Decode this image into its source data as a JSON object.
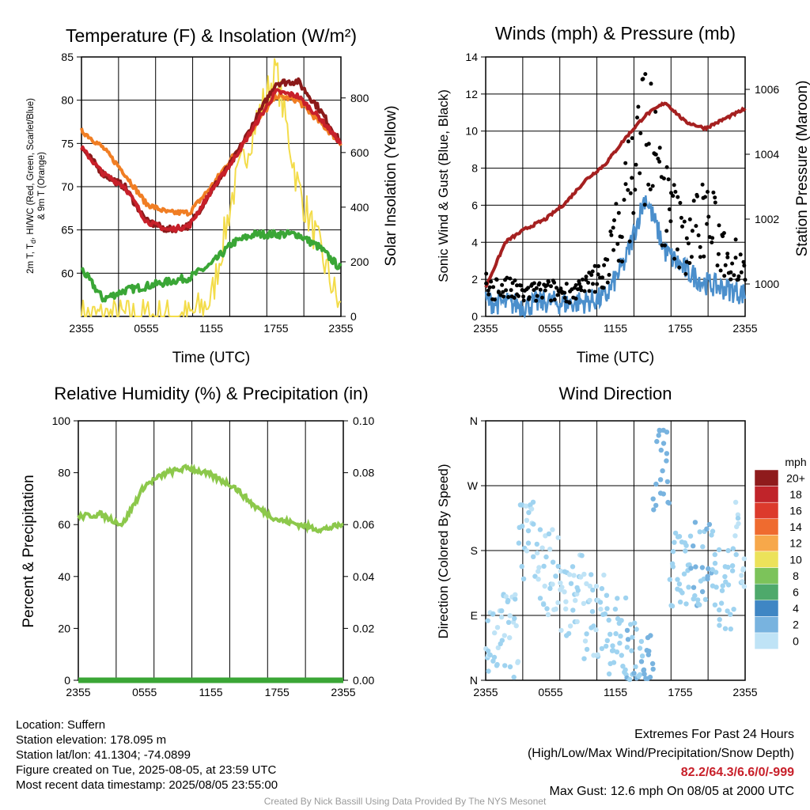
{
  "charts": {
    "temp": {
      "title": "Temperature (F) & Insolation (W/m²)",
      "ylabel_lines": [
        "2m T, T",
        "d",
        ", HI/WC (Red, Green, Scarlet/Blue)",
        "& 9m T (Orange)"
      ],
      "y2label": "Solar Insolation (Yellow)",
      "xlabel": "Time (UTC)"
    },
    "wind": {
      "title": "Winds (mph) & Pressure (mb)",
      "ylabel": "Sonic Wind & Gust (Blue, Black)",
      "y2label": "Station Pressure (Maroon)",
      "xlabel": "Time (UTC)"
    },
    "rh": {
      "title": "Relative Humidity (%) & Precipitation (in)",
      "ylabel": "Percent & Precipitation"
    },
    "dir": {
      "title": "Wind Direction",
      "ylabel": "Direction (Colored By Speed)",
      "colorbar_unit": "mph",
      "colorbar_labels": [
        "20+",
        "18",
        "16",
        "14",
        "12",
        "10",
        "8",
        "6",
        "4",
        "2",
        "0"
      ]
    }
  },
  "info": {
    "location": "Location: Suffern",
    "elevation": "Station elevation: 178.095 m",
    "latlon": "Station lat/lon: 41.1304; -74.0899",
    "created": "Figure created on Tue, 2025-08-05, at 23:59 UTC",
    "recent": "Most recent data timestamp: 2025/08/05 23:55:00",
    "extremes_title": "Extremes For Past 24 Hours",
    "extremes_sub": "(High/Low/Max Wind/Precipitation/Snow Depth)",
    "extremes_values": "82.2/64.3/6.6/0/-999",
    "max_gust": "Max Gust: 12.6 mph On 08/05 at 2000 UTC",
    "credit": "Created By Nick Bassill Using Data Provided By The NYS Mesonet"
  },
  "chart_data": [
    {
      "type": "line",
      "title": "Temperature (F) & Insolation (W/m²)",
      "xlabel": "Time (UTC)",
      "ylabel": "2m T, Td, HI/WC (Red, Green, Scarlet/Blue) & 9m T (Orange)",
      "y2label": "Solar Insolation (Yellow)",
      "x": [
        "2355",
        "0155",
        "0355",
        "0555",
        "0755",
        "0955",
        "1155",
        "1355",
        "1555",
        "1755",
        "1955",
        "2155",
        "2355"
      ],
      "x_ticks": [
        "2355",
        "0555",
        "1155",
        "1755",
        "2355"
      ],
      "ylim": [
        55,
        85
      ],
      "y2lim": [
        0,
        950
      ],
      "y_ticks": [
        60,
        65,
        70,
        75,
        80,
        85
      ],
      "y2_ticks": [
        0,
        200,
        400,
        600,
        800
      ],
      "series": [
        {
          "color": "#c8202a",
          "axis": "left",
          "values": [
            74.5,
            71.5,
            70.0,
            66.0,
            65.0,
            65.5,
            69.5,
            73.0,
            77.0,
            81.0,
            80.5,
            78.0,
            75.0
          ]
        },
        {
          "color": "#8b1a1a",
          "axis": "left",
          "values": [
            74.5,
            71.5,
            70.0,
            66.0,
            65.0,
            65.5,
            69.5,
            73.0,
            77.5,
            82.0,
            82.2,
            79.0,
            75.0
          ]
        },
        {
          "color": "#f07e24",
          "axis": "left",
          "values": [
            76.5,
            74.5,
            71.5,
            68.0,
            67.0,
            67.0,
            70.0,
            73.5,
            77.0,
            80.5,
            80.0,
            77.5,
            75.0
          ]
        },
        {
          "color": "#3aa636",
          "axis": "left",
          "values": [
            60.5,
            57.0,
            58.0,
            58.5,
            59.0,
            59.5,
            61.0,
            63.5,
            64.5,
            64.5,
            64.5,
            63.0,
            60.5
          ]
        },
        {
          "color": "#f3dc4a",
          "axis": "right",
          "values": [
            0,
            0,
            0,
            0,
            0,
            0,
            60,
            450,
            700,
            900,
            480,
            250,
            20
          ]
        }
      ]
    },
    {
      "type": "line",
      "title": "Winds (mph) & Pressure (mb)",
      "xlabel": "Time (UTC)",
      "ylabel": "Sonic Wind & Gust (Blue, Black)",
      "y2label": "Station Pressure (Maroon)",
      "x": [
        "2355",
        "0155",
        "0355",
        "0555",
        "0755",
        "0955",
        "1155",
        "1355",
        "1455",
        "1555",
        "1755",
        "1955",
        "2155",
        "2355"
      ],
      "x_ticks": [
        "2355",
        "0555",
        "1155",
        "1755",
        "2355"
      ],
      "ylim": [
        0,
        14
      ],
      "y2lim": [
        999.0,
        1007.0
      ],
      "y_ticks": [
        0,
        2,
        4,
        6,
        8,
        10,
        12,
        14
      ],
      "y2_ticks": [
        1000,
        1002,
        1004,
        1006
      ],
      "series": [
        {
          "color": "#4b8fcc",
          "axis": "left",
          "values": [
            0.8,
            0.7,
            0.6,
            0.8,
            0.7,
            0.8,
            1.0,
            3.0,
            6.5,
            3.5,
            2.5,
            1.8,
            1.5,
            1.2
          ]
        },
        {
          "color": "#000000",
          "axis": "left",
          "kind": "scatter",
          "values": [
            1.6,
            1.5,
            1.2,
            1.4,
            1.3,
            1.5,
            2.5,
            6.0,
            10.5,
            6.0,
            4.0,
            5.5,
            3.5,
            3.0
          ]
        },
        {
          "color": "#a52020",
          "axis": "right",
          "values": [
            999.9,
            1001.3,
            1001.7,
            1002.0,
            1002.5,
            1003.2,
            1003.7,
            1004.5,
            1005.2,
            1005.6,
            1005.0,
            1004.8,
            1005.1,
            1005.4
          ]
        }
      ]
    },
    {
      "type": "line",
      "title": "Relative Humidity (%) & Precipitation (in)",
      "ylabel": "Percent & Precipitation",
      "x": [
        "2355",
        "0155",
        "0355",
        "0555",
        "0755",
        "0955",
        "1155",
        "1355",
        "1555",
        "1755",
        "1955",
        "2155",
        "2355"
      ],
      "x_ticks": [
        "2355",
        "0555",
        "1155",
        "1755",
        "2355"
      ],
      "ylim": [
        0,
        100
      ],
      "y2lim": [
        0.0,
        0.1
      ],
      "y_ticks": [
        0,
        20,
        40,
        60,
        80,
        100
      ],
      "y2_ticks": [
        "0.00",
        "0.02",
        "0.04",
        "0.06",
        "0.08",
        "0.10"
      ],
      "series": [
        {
          "color": "#8cc84b",
          "axis": "left",
          "values": [
            63,
            64,
            60,
            75,
            80,
            82,
            79,
            75,
            67,
            62,
            60,
            58,
            60
          ]
        },
        {
          "color": "#3aa636",
          "axis": "right",
          "values": [
            0,
            0,
            0,
            0,
            0,
            0,
            0,
            0,
            0,
            0,
            0,
            0,
            0
          ]
        }
      ]
    },
    {
      "type": "scatter",
      "title": "Wind Direction",
      "ylabel": "Direction (Colored By Speed)",
      "x_ticks": [
        "2355",
        "0555",
        "1155",
        "1755",
        "2355"
      ],
      "y_ticks": [
        "N",
        "E",
        "S",
        "W",
        "N"
      ],
      "ylim": [
        0,
        360
      ],
      "colorbar": {
        "unit": "mph",
        "levels": [
          "20+",
          "18",
          "16",
          "14",
          "12",
          "10",
          "8",
          "6",
          "4",
          "2",
          "0"
        ]
      },
      "points": [
        {
          "time": "0155",
          "dir": 60,
          "speed": 1
        },
        {
          "time": "0355",
          "dir": 200,
          "speed": 1
        },
        {
          "time": "0555",
          "dir": 150,
          "speed": 1
        },
        {
          "time": "0755",
          "dir": 120,
          "speed": 1
        },
        {
          "time": "0955",
          "dir": 90,
          "speed": 1
        },
        {
          "time": "1155",
          "dir": 60,
          "speed": 2
        },
        {
          "time": "1355",
          "dir": 20,
          "speed": 3
        },
        {
          "time": "1455",
          "dir": 5,
          "speed": 4
        },
        {
          "time": "1455",
          "dir": 358,
          "speed": 6
        },
        {
          "time": "1555",
          "dir": 292,
          "speed": 4
        },
        {
          "time": "1755",
          "dir": 150,
          "speed": 2
        },
        {
          "time": "1955",
          "dir": 160,
          "speed": 3
        },
        {
          "time": "2155",
          "dir": 130,
          "speed": 2
        },
        {
          "time": "2355",
          "dir": 190,
          "speed": 1
        }
      ]
    }
  ]
}
